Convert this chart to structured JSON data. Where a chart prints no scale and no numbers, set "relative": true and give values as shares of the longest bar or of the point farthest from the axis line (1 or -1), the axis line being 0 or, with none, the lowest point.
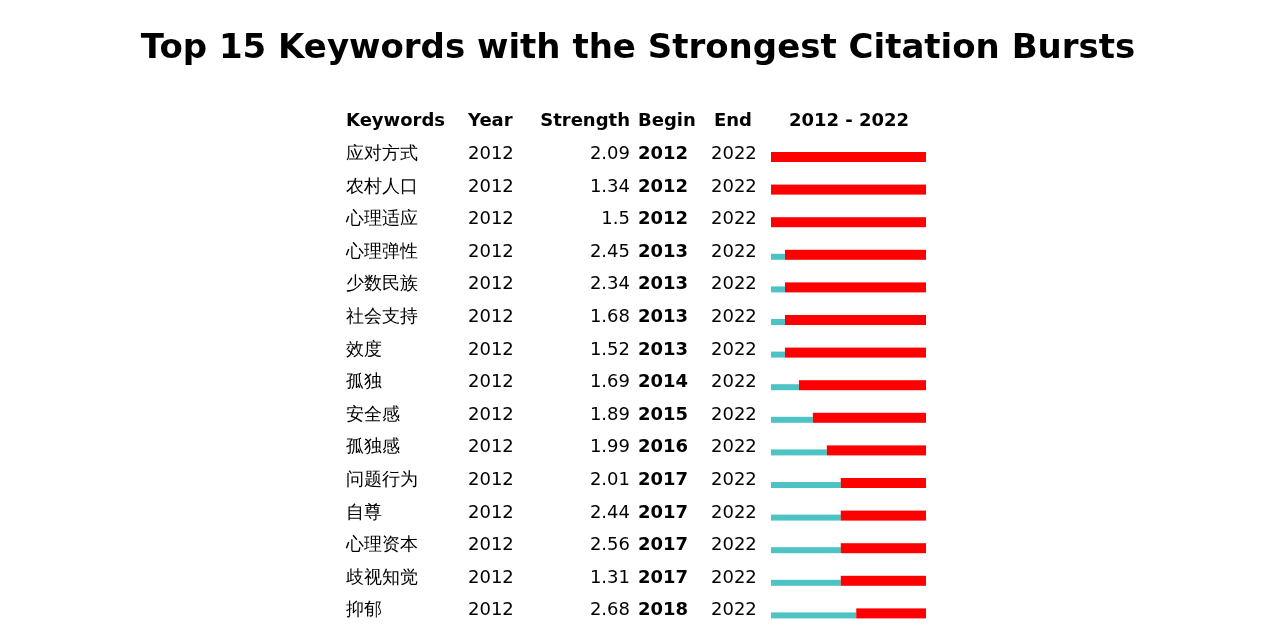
{
  "chart_data": {
    "type": "bar",
    "orientation": "horizontal",
    "stacked": true,
    "relative": true,
    "title": "Top 15 Keywords with the Strongest Citation Bursts",
    "ylabel": "Keywords",
    "xlabel": "2012 - 2022",
    "tick_labels": "y",
    "categories": [
      "应对方式",
      "农村人口",
      "心理适应",
      "心理弹性",
      "少数民族",
      "社会支持",
      "效度",
      "孤独",
      "安全感",
      "孤独感",
      "问题行为",
      "自尊",
      "心理资本",
      "歧视知觉",
      "抑郁"
    ],
    "series": [
      {
        "color": "#4ec3c6",
        "values": [
          0,
          0,
          0,
          0.09,
          0.09,
          0.09,
          0.09,
          0.18,
          0.27,
          0.36,
          0.45,
          0.45,
          0.45,
          0.45,
          0.55
        ]
      },
      {
        "color": "#ff0000",
        "values": [
          1,
          1,
          1,
          0.91,
          0.91,
          0.91,
          0.91,
          0.82,
          0.73,
          0.64,
          0.55,
          0.55,
          0.55,
          0.55,
          0.45
        ]
      }
    ],
    "annotations": [
      "Year",
      "Strength",
      "Begin",
      "End",
      "2012",
      "2.09",
      "2012",
      "2022",
      "2012",
      "1.34",
      "2012",
      "2022",
      "2012",
      "1.5",
      "2012",
      "2022",
      "2012",
      "2.45",
      "2013",
      "2022",
      "2012",
      "2.34",
      "2013",
      "2022",
      "2012",
      "1.68",
      "2013",
      "2022",
      "2012",
      "1.52",
      "2013",
      "2022",
      "2012",
      "1.69",
      "2014",
      "2022",
      "2012",
      "1.89",
      "2015",
      "2022",
      "2012",
      "1.99",
      "2016",
      "2022",
      "2012",
      "2.01",
      "2017",
      "2022",
      "2012",
      "2.44",
      "2017",
      "2022",
      "2012",
      "2.56",
      "2017",
      "2022",
      "2012",
      "1.31",
      "2017",
      "2022",
      "2012",
      "2.68",
      "2018",
      "2022"
    ]
  }
}
